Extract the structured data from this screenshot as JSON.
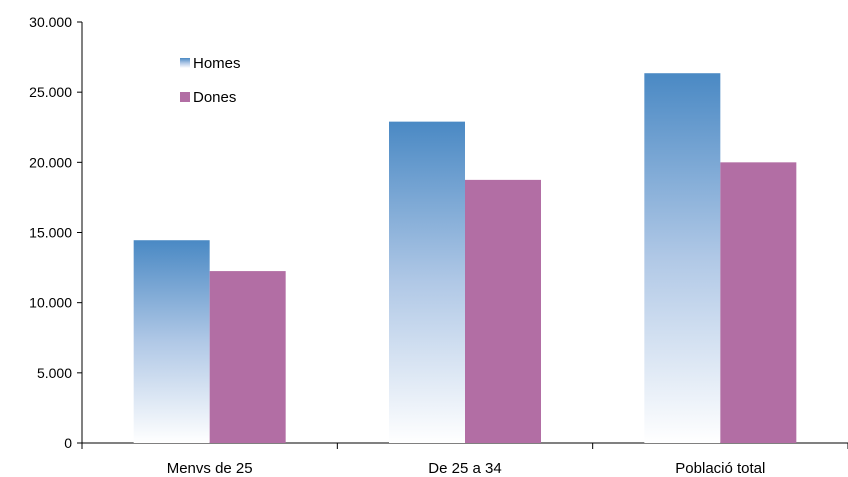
{
  "chart_data": {
    "type": "bar",
    "categories": [
      "Menvs de 25",
      "De 25 a 34",
      "Població total"
    ],
    "series": [
      {
        "name": "Homes",
        "values": [
          14450,
          22900,
          26350
        ],
        "color": "#4a89c4"
      },
      {
        "name": "Dones",
        "values": [
          12250,
          18750,
          20000
        ],
        "color": "#b26ea4"
      }
    ],
    "yticks": [
      "0",
      "5.000",
      "10.000",
      "15.000",
      "20.000",
      "25.000",
      "30.000"
    ],
    "ytick_values": [
      0,
      5000,
      10000,
      15000,
      20000,
      25000,
      30000
    ],
    "ylim": [
      0,
      30000
    ],
    "grid": false,
    "legend_position": "top-left",
    "title": "",
    "xlabel": "",
    "ylabel": ""
  }
}
